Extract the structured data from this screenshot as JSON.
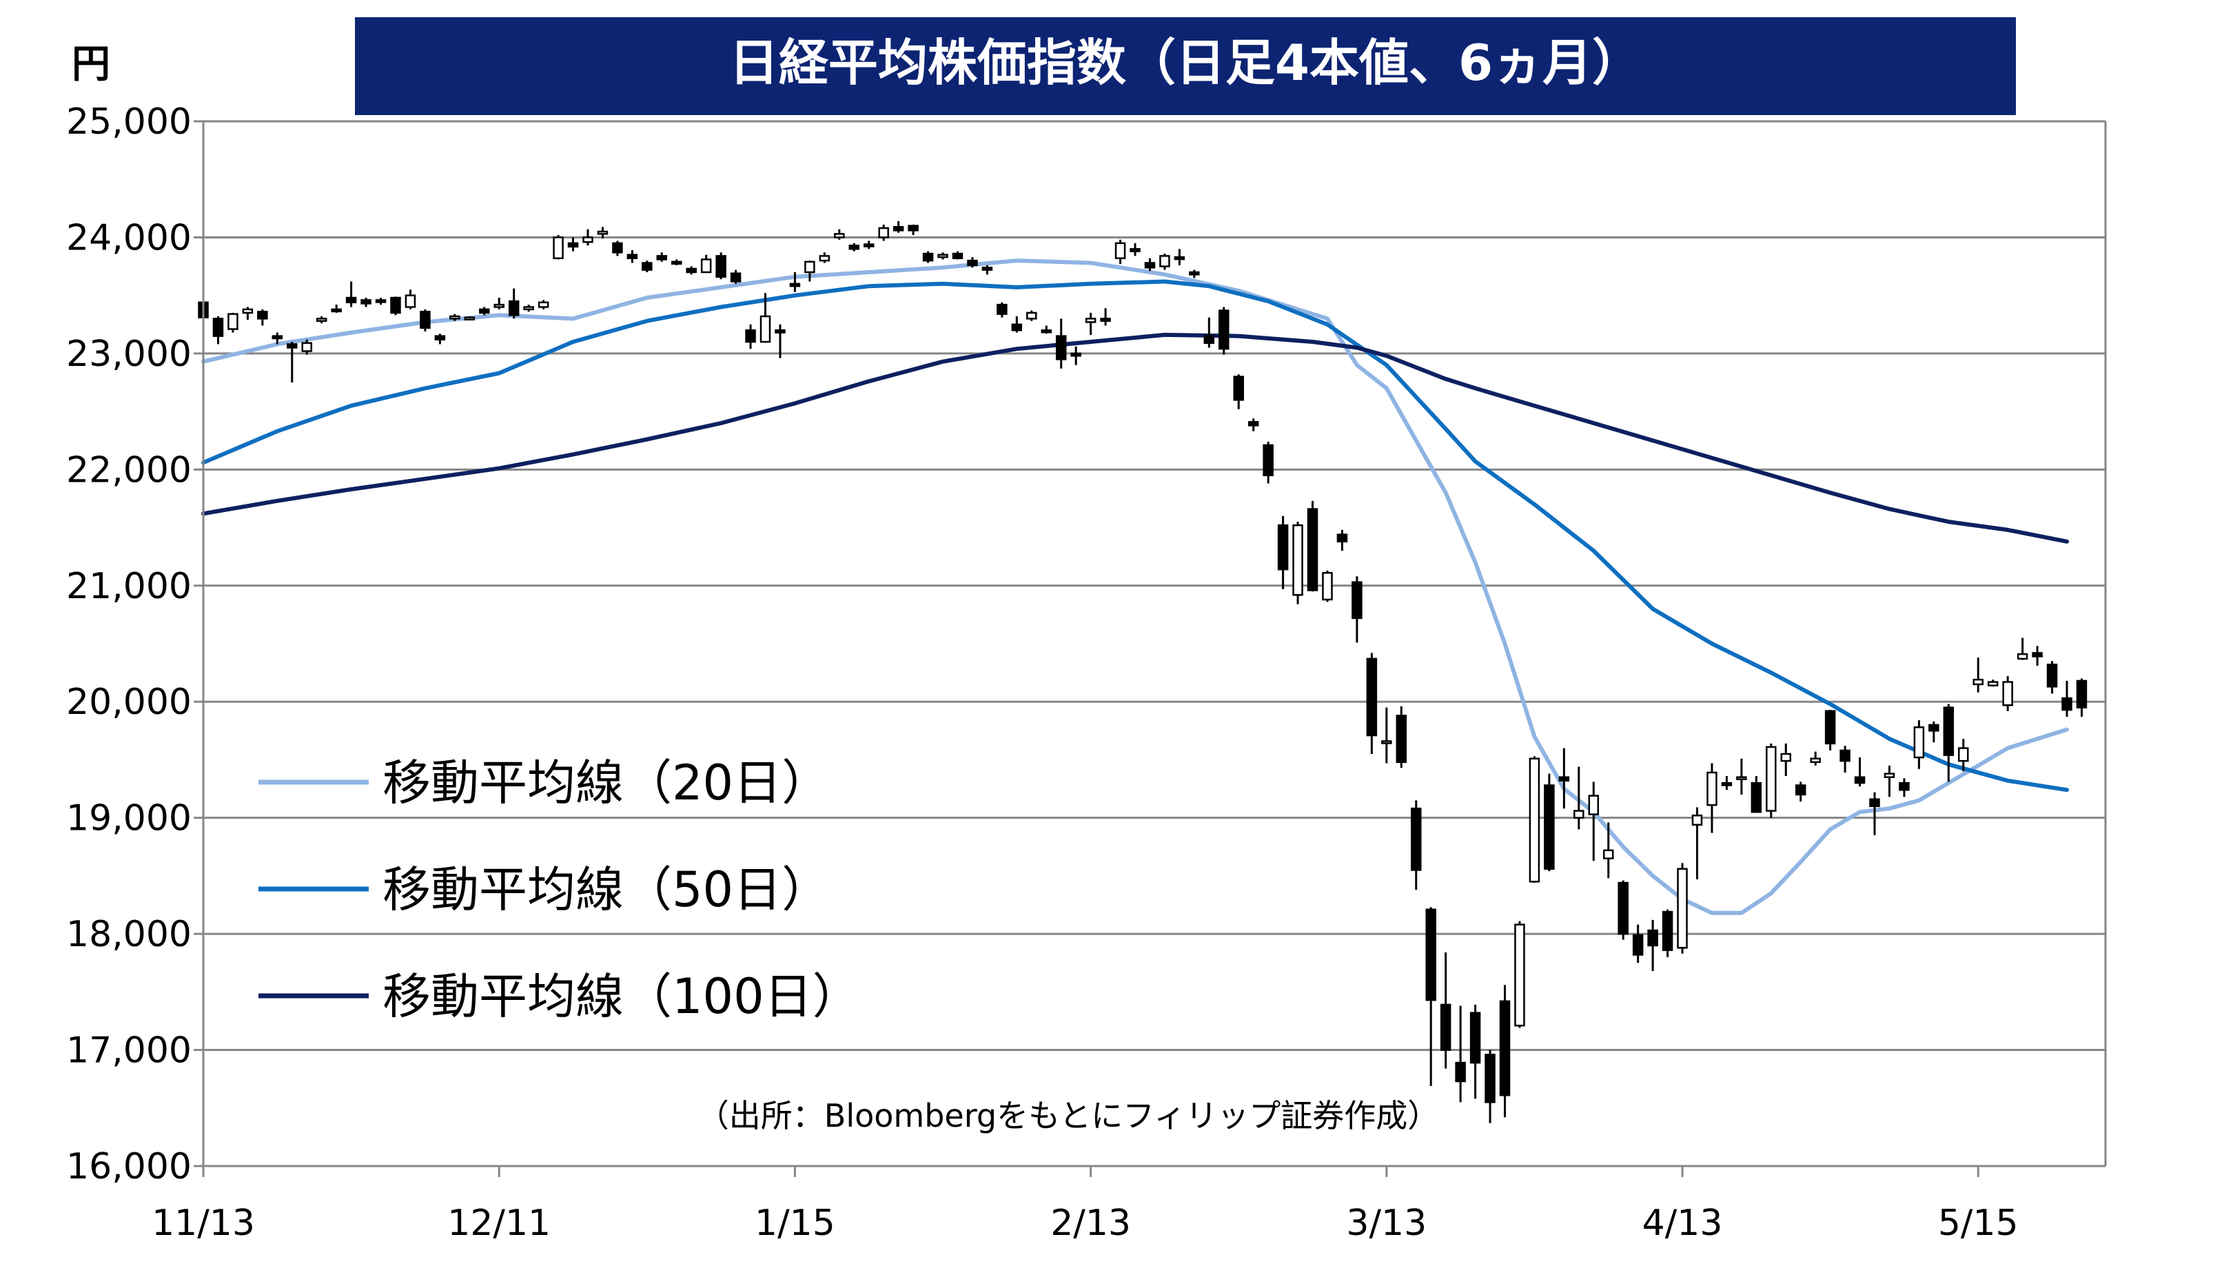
{
  "chart_data": {
    "type": "candlestick",
    "title": "日経平均株価指数（日足4本値、6ヵ月）",
    "ylabel": "円",
    "ylim": [
      16000,
      25000
    ],
    "y_ticks": [
      "16,000",
      "17,000",
      "18,000",
      "19,000",
      "20,000",
      "21,000",
      "22,000",
      "23,000",
      "24,000",
      "25,000"
    ],
    "y_tick_values": [
      16000,
      17000,
      18000,
      19000,
      20000,
      21000,
      22000,
      23000,
      24000,
      25000
    ],
    "x_ticks": [
      "11/13",
      "12/11",
      "1/15",
      "2/13",
      "3/13",
      "4/13",
      "5/15"
    ],
    "x_tick_index": [
      0,
      20,
      40,
      60,
      80,
      100,
      120
    ],
    "grid": "horizontal",
    "legend_position": "bottom-left",
    "source_note": "（出所：Bloombergをもとにフィリップ証券作成）",
    "colors": {
      "title_bg": "#0d2473",
      "title_text": "#ffffff",
      "up_candle": "#ffffff",
      "down_candle": "#000000",
      "ma20": "#8fb4e3",
      "ma50": "#0f6fc0",
      "ma100": "#0d2060",
      "grid": "#868686"
    },
    "series": [
      {
        "name": "移動平均線（20日）",
        "key": "ma20",
        "values": [
          [
            0,
            22930
          ],
          [
            5,
            23080
          ],
          [
            10,
            23180
          ],
          [
            15,
            23270
          ],
          [
            20,
            23330
          ],
          [
            25,
            23300
          ],
          [
            30,
            23480
          ],
          [
            35,
            23570
          ],
          [
            40,
            23660
          ],
          [
            45,
            23700
          ],
          [
            50,
            23740
          ],
          [
            55,
            23800
          ],
          [
            60,
            23780
          ],
          [
            65,
            23680
          ],
          [
            70,
            23540
          ],
          [
            73,
            23420
          ],
          [
            76,
            23300
          ],
          [
            78,
            22900
          ],
          [
            80,
            22700
          ],
          [
            82,
            22250
          ],
          [
            84,
            21800
          ],
          [
            86,
            21200
          ],
          [
            88,
            20500
          ],
          [
            90,
            19700
          ],
          [
            92,
            19250
          ],
          [
            94,
            19050
          ],
          [
            96,
            18750
          ],
          [
            98,
            18500
          ],
          [
            100,
            18300
          ],
          [
            102,
            18180
          ],
          [
            104,
            18180
          ],
          [
            106,
            18350
          ],
          [
            108,
            18620
          ],
          [
            110,
            18900
          ],
          [
            112,
            19050
          ],
          [
            114,
            19080
          ],
          [
            116,
            19150
          ],
          [
            118,
            19300
          ],
          [
            120,
            19450
          ],
          [
            122,
            19600
          ],
          [
            126,
            19760
          ]
        ]
      },
      {
        "name": "移動平均線（50日）",
        "key": "ma50",
        "values": [
          [
            0,
            22060
          ],
          [
            5,
            22330
          ],
          [
            10,
            22550
          ],
          [
            15,
            22700
          ],
          [
            20,
            22830
          ],
          [
            25,
            23100
          ],
          [
            30,
            23280
          ],
          [
            35,
            23400
          ],
          [
            40,
            23500
          ],
          [
            45,
            23580
          ],
          [
            50,
            23600
          ],
          [
            55,
            23570
          ],
          [
            60,
            23600
          ],
          [
            65,
            23620
          ],
          [
            68,
            23580
          ],
          [
            72,
            23450
          ],
          [
            76,
            23250
          ],
          [
            80,
            22900
          ],
          [
            84,
            22350
          ],
          [
            86,
            22070
          ],
          [
            90,
            21700
          ],
          [
            94,
            21300
          ],
          [
            98,
            20800
          ],
          [
            102,
            20500
          ],
          [
            106,
            20250
          ],
          [
            110,
            19980
          ],
          [
            114,
            19680
          ],
          [
            118,
            19460
          ],
          [
            122,
            19320
          ],
          [
            126,
            19240
          ]
        ]
      },
      {
        "name": "移動平均線（100日）",
        "key": "ma100",
        "values": [
          [
            0,
            21620
          ],
          [
            5,
            21730
          ],
          [
            10,
            21830
          ],
          [
            15,
            21920
          ],
          [
            20,
            22010
          ],
          [
            25,
            22130
          ],
          [
            30,
            22260
          ],
          [
            35,
            22400
          ],
          [
            40,
            22570
          ],
          [
            45,
            22760
          ],
          [
            50,
            22930
          ],
          [
            55,
            23040
          ],
          [
            60,
            23100
          ],
          [
            65,
            23160
          ],
          [
            70,
            23150
          ],
          [
            75,
            23100
          ],
          [
            78,
            23050
          ],
          [
            80,
            22980
          ],
          [
            84,
            22780
          ],
          [
            86,
            22700
          ],
          [
            90,
            22550
          ],
          [
            94,
            22400
          ],
          [
            98,
            22250
          ],
          [
            102,
            22100
          ],
          [
            106,
            21950
          ],
          [
            110,
            21800
          ],
          [
            114,
            21660
          ],
          [
            118,
            21550
          ],
          [
            122,
            21480
          ],
          [
            126,
            21380
          ]
        ]
      }
    ],
    "ohlc": [
      [
        23440,
        23450,
        23230,
        23310
      ],
      [
        23300,
        23320,
        23080,
        23150
      ],
      [
        23210,
        23350,
        23180,
        23340
      ],
      [
        23350,
        23400,
        23290,
        23380
      ],
      [
        23360,
        23380,
        23240,
        23300
      ],
      [
        23150,
        23180,
        23080,
        23130
      ],
      [
        23080,
        23100,
        22750,
        23050
      ],
      [
        23020,
        23120,
        22990,
        23090
      ],
      [
        23280,
        23320,
        23260,
        23300
      ],
      [
        23380,
        23420,
        23350,
        23370
      ],
      [
        23480,
        23620,
        23400,
        23440
      ],
      [
        23460,
        23480,
        23400,
        23430
      ],
      [
        23460,
        23480,
        23420,
        23450
      ],
      [
        23480,
        23490,
        23330,
        23350
      ],
      [
        23400,
        23550,
        23380,
        23500
      ],
      [
        23360,
        23380,
        23190,
        23220
      ],
      [
        23150,
        23170,
        23080,
        23120
      ],
      [
        23300,
        23340,
        23280,
        23320
      ],
      [
        23300,
        23320,
        23290,
        23310
      ],
      [
        23380,
        23400,
        23330,
        23350
      ],
      [
        23400,
        23480,
        23380,
        23420
      ],
      [
        23450,
        23560,
        23300,
        23330
      ],
      [
        23380,
        23420,
        23360,
        23400
      ],
      [
        23400,
        23460,
        23380,
        23440
      ],
      [
        23820,
        24020,
        23810,
        24000
      ],
      [
        23950,
        24000,
        23880,
        23920
      ],
      [
        23960,
        24070,
        23930,
        24000
      ],
      [
        24030,
        24090,
        23990,
        24050
      ],
      [
        23950,
        23970,
        23840,
        23870
      ],
      [
        23850,
        23890,
        23780,
        23820
      ],
      [
        23780,
        23800,
        23700,
        23720
      ],
      [
        23840,
        23870,
        23790,
        23810
      ],
      [
        23790,
        23810,
        23760,
        23780
      ],
      [
        23730,
        23750,
        23680,
        23700
      ],
      [
        23700,
        23850,
        23700,
        23810
      ],
      [
        23840,
        23870,
        23640,
        23660
      ],
      [
        23690,
        23720,
        23600,
        23620
      ],
      [
        23200,
        23250,
        23040,
        23100
      ],
      [
        23100,
        23520,
        23100,
        23320
      ],
      [
        23200,
        23250,
        22960,
        23180
      ],
      [
        23600,
        23700,
        23530,
        23580
      ],
      [
        23700,
        23800,
        23620,
        23790
      ],
      [
        23800,
        23870,
        23780,
        23840
      ],
      [
        24000,
        24070,
        23980,
        24030
      ],
      [
        23930,
        23950,
        23880,
        23900
      ],
      [
        23940,
        23970,
        23900,
        23930
      ],
      [
        24000,
        24110,
        23970,
        24080
      ],
      [
        24090,
        24140,
        24040,
        24060
      ],
      [
        24100,
        24110,
        24020,
        24060
      ],
      [
        23860,
        23880,
        23780,
        23800
      ],
      [
        23830,
        23870,
        23810,
        23850
      ],
      [
        23860,
        23880,
        23810,
        23820
      ],
      [
        23800,
        23830,
        23740,
        23760
      ],
      [
        23740,
        23760,
        23680,
        23720
      ],
      [
        23420,
        23440,
        23310,
        23340
      ],
      [
        23250,
        23320,
        23180,
        23200
      ],
      [
        23300,
        23370,
        23280,
        23350
      ],
      [
        23200,
        23240,
        23170,
        23190
      ],
      [
        23150,
        23300,
        22870,
        22950
      ],
      [
        23000,
        23060,
        22900,
        22980
      ],
      [
        23270,
        23350,
        23160,
        23300
      ],
      [
        23300,
        23390,
        23240,
        23280
      ],
      [
        23820,
        23980,
        23770,
        23950
      ],
      [
        23900,
        23950,
        23840,
        23880
      ],
      [
        23780,
        23820,
        23710,
        23740
      ],
      [
        23750,
        23860,
        23720,
        23840
      ],
      [
        23830,
        23900,
        23760,
        23820
      ],
      [
        23700,
        23720,
        23650,
        23680
      ],
      [
        23150,
        23310,
        23050,
        23090
      ],
      [
        23370,
        23400,
        22990,
        23040
      ],
      [
        22800,
        22820,
        22520,
        22600
      ],
      [
        22410,
        22440,
        22330,
        22380
      ],
      [
        22210,
        22240,
        21880,
        21950
      ],
      [
        21520,
        21600,
        20970,
        21140
      ],
      [
        20920,
        21550,
        20840,
        21520
      ],
      [
        21660,
        21730,
        20950,
        20960
      ],
      [
        20880,
        21130,
        20860,
        21110
      ],
      [
        21440,
        21480,
        21300,
        21380
      ],
      [
        21030,
        21080,
        20510,
        20720
      ],
      [
        20370,
        20420,
        19550,
        19710
      ],
      [
        19660,
        19950,
        19470,
        19660
      ],
      [
        19880,
        19960,
        19430,
        19480
      ],
      [
        19080,
        19150,
        18380,
        18550
      ],
      [
        18210,
        18230,
        16690,
        17430
      ],
      [
        17390,
        17840,
        16840,
        17000
      ],
      [
        16890,
        17380,
        16550,
        16730
      ],
      [
        17320,
        17390,
        16580,
        16890
      ],
      [
        16960,
        17000,
        16370,
        16550
      ],
      [
        17420,
        17560,
        16420,
        16610
      ],
      [
        17210,
        18110,
        17190,
        18080
      ],
      [
        18450,
        19530,
        18440,
        19510
      ],
      [
        19280,
        19380,
        18540,
        18560
      ],
      [
        19350,
        19600,
        19080,
        19320
      ],
      [
        19000,
        19440,
        18900,
        19060
      ],
      [
        19030,
        19310,
        18630,
        19190
      ],
      [
        18650,
        18960,
        18480,
        18720
      ],
      [
        18440,
        18460,
        17950,
        18000
      ],
      [
        17990,
        18080,
        17750,
        17820
      ],
      [
        18030,
        18120,
        17680,
        17900
      ],
      [
        18190,
        18210,
        17800,
        17860
      ],
      [
        17880,
        18610,
        17830,
        18560
      ],
      [
        18940,
        19090,
        18470,
        19020
      ],
      [
        19110,
        19470,
        18870,
        19390
      ],
      [
        19300,
        19360,
        19240,
        19280
      ],
      [
        19340,
        19510,
        19200,
        19350
      ],
      [
        19300,
        19360,
        19050,
        19050
      ],
      [
        19060,
        19640,
        19000,
        19610
      ],
      [
        19490,
        19640,
        19360,
        19550
      ],
      [
        19280,
        19310,
        19140,
        19200
      ],
      [
        19480,
        19570,
        19450,
        19510
      ],
      [
        19920,
        19930,
        19580,
        19640
      ],
      [
        19580,
        19620,
        19390,
        19490
      ],
      [
        19350,
        19520,
        19270,
        19300
      ],
      [
        19160,
        19220,
        18850,
        19100
      ],
      [
        19350,
        19450,
        19180,
        19380
      ],
      [
        19300,
        19340,
        19180,
        19240
      ],
      [
        19520,
        19840,
        19420,
        19780
      ],
      [
        19800,
        19830,
        19650,
        19750
      ],
      [
        19950,
        19980,
        19310,
        19540
      ],
      [
        19490,
        19680,
        19400,
        19600
      ],
      [
        20150,
        20380,
        20080,
        20190
      ],
      [
        20140,
        20190,
        20130,
        20170
      ],
      [
        19970,
        20220,
        19920,
        20170
      ],
      [
        20370,
        20550,
        20360,
        20410
      ],
      [
        20420,
        20480,
        20310,
        20390
      ],
      [
        20320,
        20350,
        20070,
        20130
      ],
      [
        20030,
        20180,
        19870,
        19930
      ],
      [
        20180,
        20200,
        19870,
        19950
      ]
    ]
  }
}
